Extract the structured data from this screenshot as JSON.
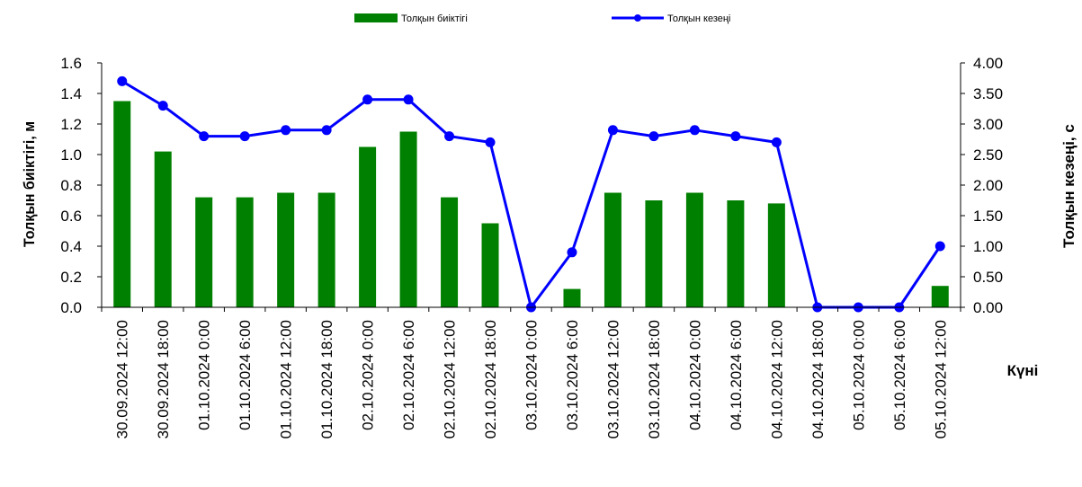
{
  "chart_data": {
    "type": "bar+line",
    "categories": [
      "30.09.2024 12:00",
      "30.09.2024 18:00",
      "01.10.2024 0:00",
      "01.10.2024 6:00",
      "01.10.2024 12:00",
      "01.10.2024 18:00",
      "02.10.2024 0:00",
      "02.10.2024 6:00",
      "02.10.2024 12:00",
      "02.10.2024 18:00",
      "03.10.2024 0:00",
      "03.10.2024 6:00",
      "03.10.2024 12:00",
      "03.10.2024 18:00",
      "04.10.2024 0:00",
      "04.10.2024 6:00",
      "04.10.2024 12:00",
      "04.10.2024 18:00",
      "05.10.2024 0:00",
      "05.10.2024 6:00",
      "05.10.2024 12:00"
    ],
    "series": [
      {
        "name": "Толқын  биіктігі",
        "type": "bar",
        "axis": "left",
        "color": "#008000",
        "values": [
          1.35,
          1.02,
          0.72,
          0.72,
          0.75,
          0.75,
          1.05,
          1.15,
          0.72,
          0.55,
          0.0,
          0.12,
          0.75,
          0.7,
          0.75,
          0.7,
          0.68,
          0.0,
          0.0,
          0.0,
          0.14
        ]
      },
      {
        "name": "Толқын  кезеңі",
        "type": "line",
        "axis": "right",
        "color": "#0000ff",
        "values": [
          3.7,
          3.3,
          2.8,
          2.8,
          2.9,
          2.9,
          3.4,
          3.4,
          2.8,
          2.7,
          0.0,
          0.9,
          2.9,
          2.8,
          2.9,
          2.8,
          2.7,
          0.0,
          0.0,
          0.0,
          1.0
        ]
      }
    ],
    "y_left": {
      "label": "Толқын биіктігі, м",
      "ylim": [
        0,
        1.6
      ],
      "ticks": [
        "0.0",
        "0.2",
        "0.4",
        "0.6",
        "0.8",
        "1.0",
        "1.2",
        "1.4",
        "1.6"
      ]
    },
    "y_right": {
      "label": "Толқын кезеңі, с",
      "ylim": [
        0,
        4.0
      ],
      "ticks": [
        "0.00",
        "0.50",
        "1.00",
        "1.50",
        "2.00",
        "2.50",
        "3.00",
        "3.50",
        "4.00"
      ]
    },
    "xlabel": "Күні",
    "grid": false,
    "legend_position": "top-center"
  }
}
